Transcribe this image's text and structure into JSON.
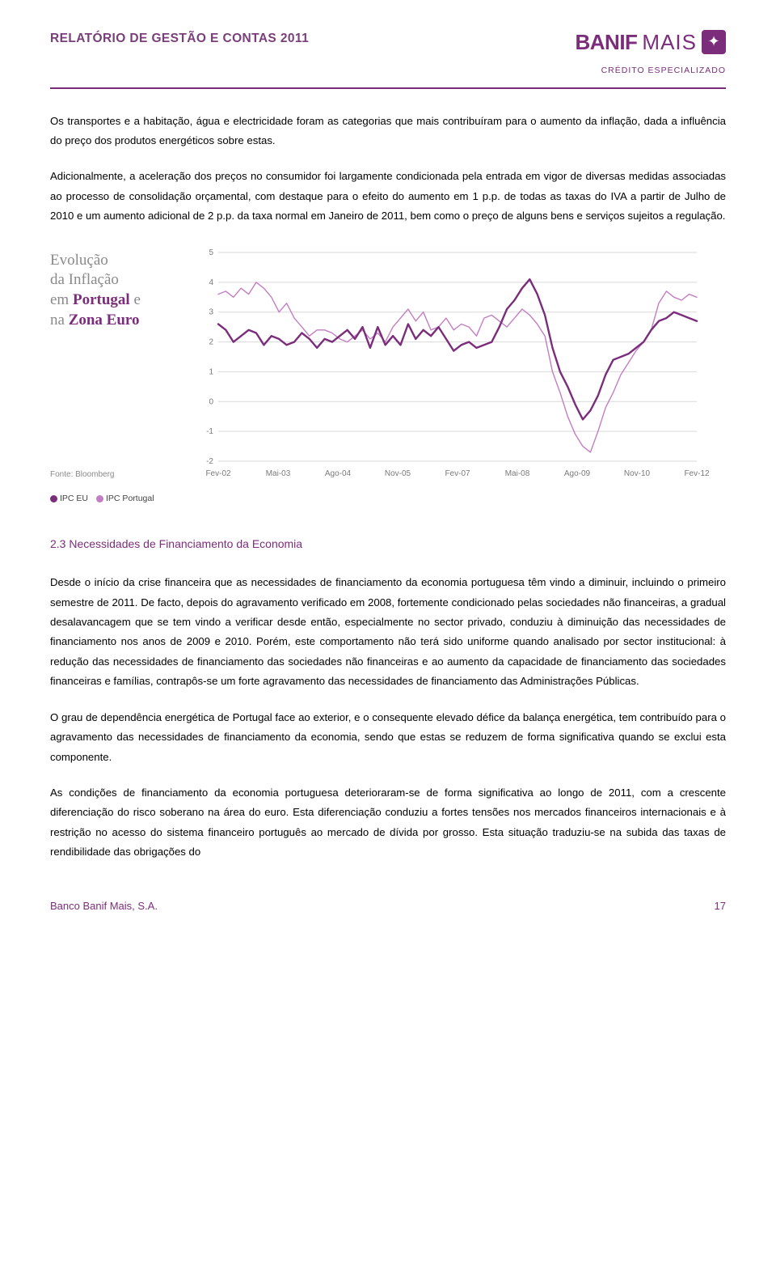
{
  "header": {
    "report_title": "RELATÓRIO DE GESTÃO E CONTAS 2011",
    "brand_name": "BANIF",
    "brand_mais": "MAIS",
    "brand_sub": "CRÉDITO ESPECIALIZADO"
  },
  "paragraphs": {
    "p1": "Os transportes e a habitação, água e electricidade foram as categorias que mais contribuíram para o aumento da inflação, dada a influência do preço dos produtos energéticos sobre estas.",
    "p2": "Adicionalmente, a aceleração dos preços no consumidor foi largamente condicionada pela entrada em vigor de diversas medidas associadas ao processo de consolidação orçamental, com destaque para o efeito do aumento em 1 p.p. de todas as taxas do IVA a partir de Julho de 2010 e um aumento adicional de 2 p.p. da taxa normal em Janeiro de 2011, bem como o preço de alguns bens e serviços sujeitos a regulação.",
    "p3": "Desde o início da crise financeira que as necessidades de financiamento da economia portuguesa têm vindo a diminuir, incluindo o primeiro semestre de 2011. De facto, depois do agravamento verificado em 2008, fortemente condicionado pelas sociedades não financeiras, a gradual desalavancagem que se tem vindo a verificar desde então, especialmente no sector privado, conduziu à diminuição das necessidades de financiamento nos anos de 2009 e 2010. Porém, este comportamento não terá sido uniforme quando analisado por sector institucional: à redução das necessidades de financiamento das sociedades não financeiras e ao aumento da capacidade de financiamento das sociedades financeiras e famílias, contrapôs-se um forte agravamento das necessidades de financiamento das Administrações Públicas.",
    "p4": "O grau de dependência energética de Portugal face ao exterior, e o consequente elevado défice da balança energética, tem contribuído para o agravamento das necessidades de financiamento da economia, sendo que estas se reduzem de forma significativa quando se exclui esta componente.",
    "p5": "As condições de financiamento da economia portuguesa deterioraram-se de forma significativa ao longo de 2011, com a crescente diferenciação do risco soberano na área do euro. Esta diferenciação conduziu a fortes tensões nos mercados financeiros internacionais e à restrição no acesso do sistema financeiro português ao mercado de dívida por grosso. Esta situação traduziu-se na subida das taxas de rendibilidade das obrigações do"
  },
  "section_heading": "2.3 Necessidades de Financiamento da Economia",
  "chart": {
    "title_l1a": "Evolução",
    "title_l1b": "da Inflação",
    "title_l2a": "em ",
    "title_l2b": "Portugal",
    "title_l2c": " e",
    "title_l3a": "na ",
    "title_l3b": "Zona Euro",
    "source": "Fonte: Bloomberg",
    "legend_eu": "IPC EU",
    "legend_pt": "IPC Portugal",
    "type": "line",
    "ylim": [
      -2,
      5
    ],
    "yticks": [
      -2,
      -1,
      0,
      1,
      2,
      3,
      4,
      5
    ],
    "xticks": [
      "Fev-02",
      "Mai-03",
      "Ago-04",
      "Nov-05",
      "Fev-07",
      "Mai-08",
      "Ago-09",
      "Nov-10",
      "Fev-12"
    ],
    "grid_color": "#d9d9d9",
    "axis_label_color": "#7a7a7a",
    "axis_label_fontsize": 10,
    "background_color": "#ffffff",
    "line_width_eu": 2.4,
    "line_width_pt": 1.4,
    "series": {
      "ipc_eu": {
        "color": "#7b2d7b",
        "values": [
          2.6,
          2.4,
          2.0,
          2.2,
          2.4,
          2.3,
          1.9,
          2.2,
          2.1,
          1.9,
          2.0,
          2.3,
          2.1,
          1.8,
          2.1,
          2.0,
          2.2,
          2.4,
          2.1,
          2.5,
          1.8,
          2.5,
          1.9,
          2.2,
          1.9,
          2.6,
          2.1,
          2.4,
          2.2,
          2.5,
          2.1,
          1.7,
          1.9,
          2.0,
          1.8,
          1.9,
          2.0,
          2.5,
          3.1,
          3.4,
          3.8,
          4.1,
          3.6,
          2.9,
          1.8,
          1.0,
          0.5,
          -0.1,
          -0.6,
          -0.3,
          0.2,
          0.9,
          1.4,
          1.5,
          1.6,
          1.8,
          2.0,
          2.4,
          2.7,
          2.8,
          3.0,
          2.9,
          2.8,
          2.7
        ]
      },
      "ipc_portugal": {
        "color": "#c37dc3",
        "values": [
          3.6,
          3.7,
          3.5,
          3.8,
          3.6,
          4.0,
          3.8,
          3.5,
          3.0,
          3.3,
          2.8,
          2.5,
          2.2,
          2.4,
          2.4,
          2.3,
          2.1,
          2.0,
          2.2,
          2.4,
          2.1,
          2.3,
          2.0,
          2.5,
          2.8,
          3.1,
          2.7,
          3.0,
          2.4,
          2.5,
          2.8,
          2.4,
          2.6,
          2.5,
          2.2,
          2.8,
          2.9,
          2.7,
          2.5,
          2.8,
          3.1,
          2.9,
          2.6,
          2.2,
          1.0,
          0.3,
          -0.5,
          -1.1,
          -1.5,
          -1.7,
          -1.0,
          -0.2,
          0.3,
          0.9,
          1.3,
          1.7,
          2.0,
          2.4,
          3.3,
          3.7,
          3.5,
          3.4,
          3.6,
          3.5
        ]
      }
    }
  },
  "footer": {
    "company": "Banco Banif Mais, S.A.",
    "page": "17"
  }
}
